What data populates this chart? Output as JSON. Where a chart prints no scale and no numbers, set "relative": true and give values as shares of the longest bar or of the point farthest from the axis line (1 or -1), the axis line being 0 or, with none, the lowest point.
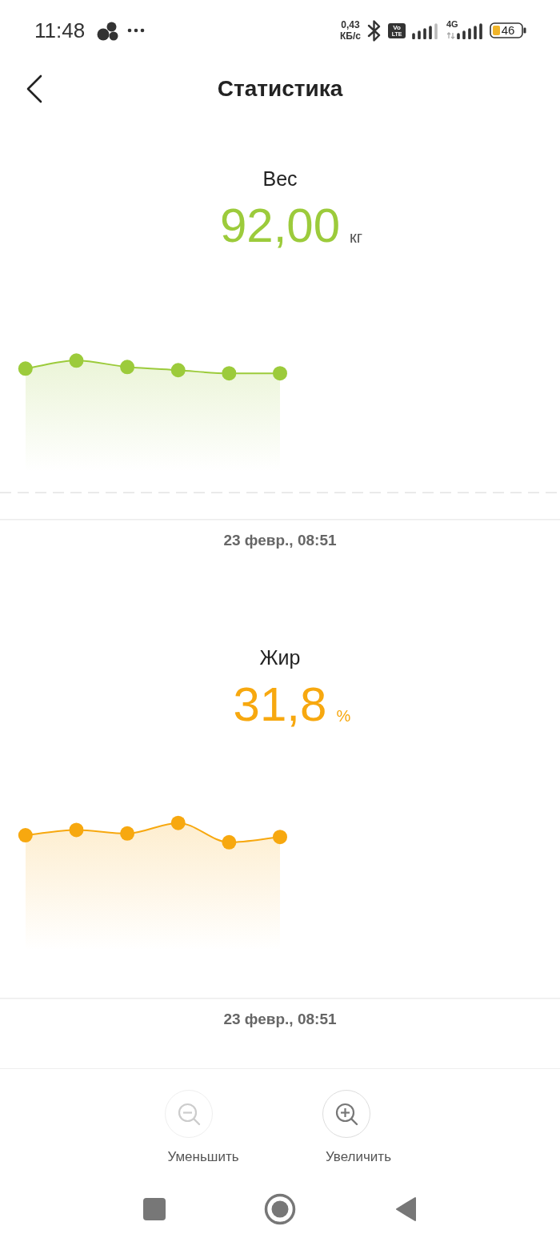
{
  "chart_data": [
    {
      "type": "other",
      "title": "Статистика",
      "annotations": [
        "11:48",
        "0,43",
        "КБ/с",
        "Vo",
        "LTE",
        "4G",
        "46"
      ]
    },
    {
      "type": "area",
      "title": "Вес",
      "annotations": [
        "92,00",
        "кг"
      ],
      "xlabel": "23 февр., 08:51",
      "categories": [
        null,
        null,
        null,
        null,
        null,
        null,
        null,
        null,
        null,
        null,
        null
      ],
      "values": [
        0.95,
        1,
        0.96,
        0.94,
        0.92,
        0.92,
        null,
        null,
        null,
        null,
        null
      ],
      "color": "#9ccb3b",
      "relative": true,
      "marker": "circle",
      "ref_lines": [
        {
          "axis": "y",
          "value": 0.17,
          "line_style": "dashed",
          "color": "#e3e3e3"
        }
      ]
    },
    {
      "type": "area",
      "title": "Жир",
      "annotations": [
        "31,8",
        "%"
      ],
      "xlabel": "23 февр., 08:51",
      "categories": [
        null,
        null,
        null,
        null,
        null,
        null,
        null,
        null,
        null,
        null,
        null
      ],
      "values": [
        0.93,
        0.96,
        0.94,
        1,
        0.89,
        0.92,
        null,
        null,
        null,
        null,
        null
      ],
      "color": "#f7a80f",
      "relative": true,
      "marker": "circle"
    },
    {
      "type": "other",
      "annotations": [
        "Уменьшить",
        "Увеличить"
      ]
    }
  ]
}
